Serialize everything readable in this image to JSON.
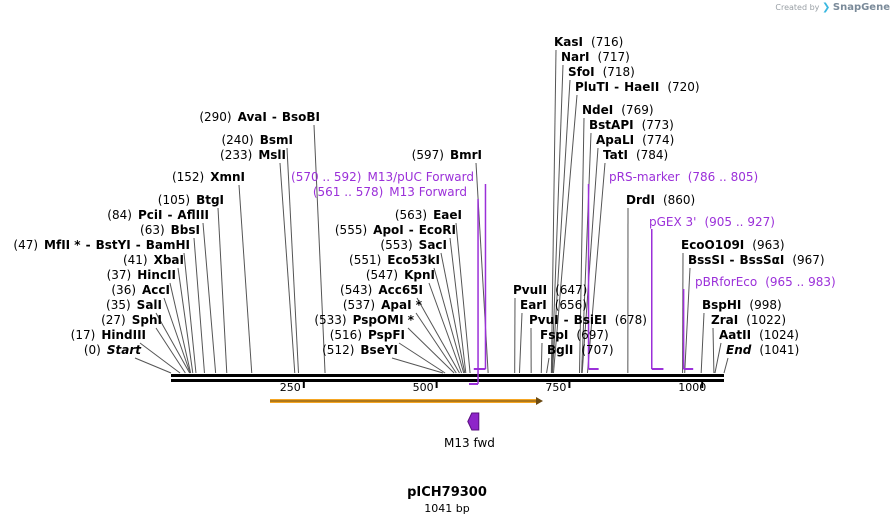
{
  "credit": {
    "prefix": "Created by",
    "brand": "SnapGene"
  },
  "map": {
    "title": "pICH79300",
    "length_label": "1041 bp",
    "bp_total": 1041,
    "ticks": [
      {
        "value": 250,
        "label": "250"
      },
      {
        "value": 500,
        "label": "500"
      },
      {
        "value": 750,
        "label": "750"
      },
      {
        "value": 1000,
        "label": "1000"
      }
    ]
  },
  "sites": [
    {
      "pos": "(0)",
      "name": "Start",
      "italic": true,
      "bp": 0
    },
    {
      "pos": "(17)",
      "name": "HindIII",
      "bp": 17
    },
    {
      "pos": "(27)",
      "name": "SphI",
      "bp": 27
    },
    {
      "pos": "(35)",
      "name": "SalI",
      "bp": 35
    },
    {
      "pos": "(36)",
      "name": "AccI",
      "bp": 36
    },
    {
      "pos": "(37)",
      "name": "HincII",
      "bp": 37
    },
    {
      "pos": "(41)",
      "name": "XbaI",
      "bp": 41
    },
    {
      "pos": "(47)",
      "name": "MfII * - BstYI - BamHI",
      "bp": 47
    },
    {
      "pos": "(63)",
      "name": "BbsI",
      "bp": 63
    },
    {
      "pos": "(84)",
      "name": "PciI - AflIII",
      "bp": 84
    },
    {
      "pos": "(105)",
      "name": "BtgI",
      "bp": 105
    },
    {
      "pos": "(152)",
      "name": "XmnI",
      "bp": 152
    },
    {
      "pos": "(233)",
      "name": "MslI",
      "bp": 233
    },
    {
      "pos": "(240)",
      "name": "BsmI",
      "bp": 240
    },
    {
      "pos": "(290)",
      "name": "AvaI - BsoBI",
      "bp": 290
    },
    {
      "pos": "(512)",
      "name": "BseYI",
      "bp": 512
    },
    {
      "pos": "(516)",
      "name": "PspFI",
      "bp": 516
    },
    {
      "pos": "(533)",
      "name": "PspOMI *",
      "bp": 533
    },
    {
      "pos": "(537)",
      "name": "ApaI *",
      "bp": 537
    },
    {
      "pos": "(543)",
      "name": "Acc65I",
      "bp": 543
    },
    {
      "pos": "(547)",
      "name": "KpnI",
      "bp": 547
    },
    {
      "pos": "(551)",
      "name": "Eco53kI",
      "bp": 551
    },
    {
      "pos": "(553)",
      "name": "SacI",
      "bp": 553
    },
    {
      "pos": "(555)",
      "name": "ApoI - EcoRI",
      "bp": 555
    },
    {
      "pos": "(563)",
      "name": "EaeI",
      "bp": 563
    },
    {
      "pos": "(597)",
      "name": "BmrI",
      "bp": 597
    },
    {
      "pos": "(647)",
      "name": "PvuII",
      "bp": 647
    },
    {
      "pos": "(656)",
      "name": "EarI",
      "bp": 656
    },
    {
      "pos": "(678)",
      "name": "PvuI - BsiEI",
      "bp": 678
    },
    {
      "pos": "(697)",
      "name": "FspI",
      "bp": 697
    },
    {
      "pos": "(707)",
      "name": "BglI",
      "bp": 707
    },
    {
      "pos": "(716)",
      "name": "KasI",
      "bp": 716
    },
    {
      "pos": "(717)",
      "name": "NarI",
      "bp": 717
    },
    {
      "pos": "(718)",
      "name": "SfoI",
      "bp": 718
    },
    {
      "pos": "(720)",
      "name": "PluTI - HaeII",
      "bp": 720
    },
    {
      "pos": "(769)",
      "name": "NdeI",
      "bp": 769
    },
    {
      "pos": "(773)",
      "name": "BstAPI",
      "bp": 773
    },
    {
      "pos": "(774)",
      "name": "ApaLI",
      "bp": 774
    },
    {
      "pos": "(784)",
      "name": "TatI",
      "bp": 784
    },
    {
      "pos": "(860)",
      "name": "DrdI",
      "bp": 860
    },
    {
      "pos": "(963)",
      "name": "EcoO109I",
      "bp": 963
    },
    {
      "pos": "(967)",
      "name": "BssSI - BssSαI",
      "bp": 967
    },
    {
      "pos": "(998)",
      "name": "BspHI",
      "bp": 998
    },
    {
      "pos": "(1022)",
      "name": "ZraI",
      "bp": 1022
    },
    {
      "pos": "(1024)",
      "name": "AatII",
      "bp": 1024
    },
    {
      "pos": "(1041)",
      "name": "End",
      "italic": true,
      "bp": 1041
    }
  ],
  "primers": [
    {
      "range": "(570 .. 592)",
      "name": "M13/pUC Forward",
      "start": 570,
      "end": 592
    },
    {
      "range": "(561 .. 578)",
      "name": "M13 Forward",
      "start": 561,
      "end": 578
    },
    {
      "range": "(786 .. 805)",
      "name": "pRS-marker",
      "start": 786,
      "end": 805
    },
    {
      "range": "(905 .. 927)",
      "name": "pGEX 3'",
      "start": 905,
      "end": 927
    },
    {
      "range": "(965 .. 983)",
      "name": "pBRforEco",
      "start": 965,
      "end": 983
    }
  ],
  "features": [
    {
      "name": "M13 fwd",
      "bp": 570
    }
  ],
  "colors": {
    "primer": "#9b30d9",
    "orf_bar": "#f5a623",
    "feature": "#8e24c9"
  }
}
